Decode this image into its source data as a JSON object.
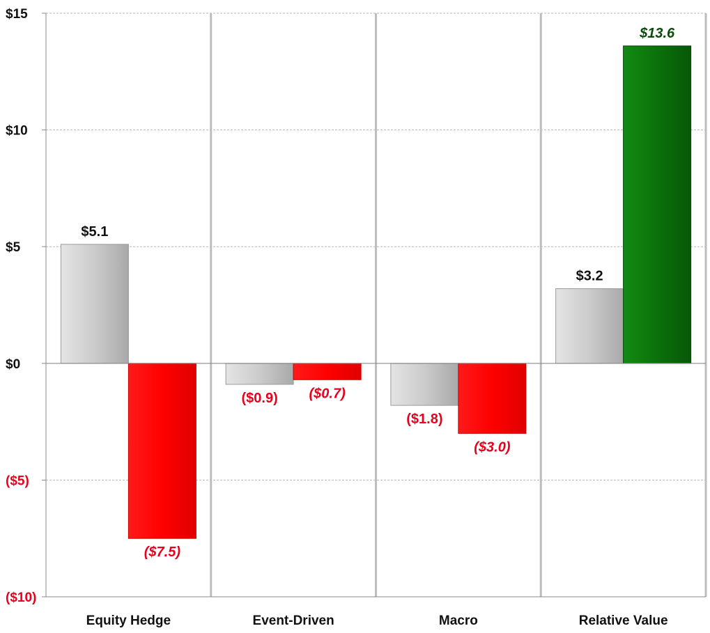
{
  "chart_data": {
    "type": "bar",
    "categories": [
      "Equity Hedge",
      "Event-Driven",
      "Macro",
      "Relative Value"
    ],
    "series": [
      {
        "values": [
          5.1,
          -0.9,
          -1.8,
          3.2
        ],
        "labels": [
          "$5.1",
          "($0.9)",
          "($1.8)",
          "$3.2"
        ]
      },
      {
        "values": [
          -7.5,
          -0.7,
          -3.0,
          13.6
        ],
        "labels": [
          "($7.5)",
          "($0.7)",
          "($3.0)",
          "$13.6"
        ]
      }
    ],
    "ylim": [
      -10,
      15
    ],
    "yticks": [
      15,
      10,
      5,
      0,
      -5,
      -10
    ],
    "ytick_labels": [
      "$15",
      "$10",
      "$5",
      "$0",
      "($5)",
      "($10)"
    ],
    "grid": true,
    "colors": {
      "series1": "#c8c8c8",
      "negative": "#ff0000",
      "positive": "#0a6e0a",
      "positive_label": "#0a4a0a",
      "negative_label": "#e8001c",
      "text": "#111111"
    }
  }
}
